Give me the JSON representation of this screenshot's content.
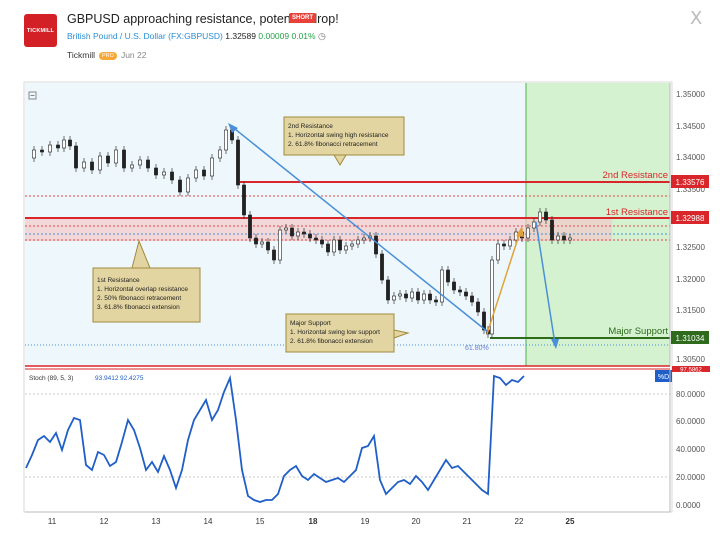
{
  "header": {
    "logo_text": "TICKMILL",
    "title": "GBPUSD approaching resistance, potential drop!",
    "badge": "SHORT",
    "instrument": "British Pound / U.S. Dollar",
    "symbol": "(FX:GBPUSD)",
    "price": "1.32589",
    "change": "0.00009",
    "change_pct": "0.01%",
    "author": "Tickmill",
    "author_badge": "PRO",
    "published": "Jun 22",
    "close_label": "X",
    "clock_icon": "clock-icon"
  },
  "chart": {
    "collapse_icon": "minus-square-icon",
    "price_axis": [
      "1.35000",
      "1.34500",
      "1.34000",
      "1.33500",
      "1.32500",
      "1.32000",
      "1.31500",
      "1.30500"
    ],
    "time_axis": [
      "11",
      "12",
      "13",
      "14",
      "15",
      "18",
      "19",
      "20",
      "21",
      "22",
      "25"
    ],
    "levels": {
      "second_resistance": {
        "label": "2nd Resistance",
        "price": "1.33576",
        "color": "#d9262b"
      },
      "first_resistance": {
        "label": "1st Resistance",
        "price": "1.32988",
        "color": "#d9262b"
      },
      "major_support": {
        "label": "Major Support",
        "price": "1.31034",
        "color": "#2e6b1d"
      }
    },
    "fib_label": "61.80%",
    "annotations": {
      "second_resistance": {
        "title": "2nd Resistance",
        "line1": "1. Horizontal swing high resistance",
        "line2": "2. 61.8% fibonacci retracement"
      },
      "first_resistance": {
        "title": "1st Resistance",
        "line1": "1. Horizontal overlap resistance",
        "line2": "2. 50% fibonacci retracement",
        "line3": "3. 61.8% fibonacci extension"
      },
      "major_support": {
        "title": "Major Support",
        "line1": "1. Horizontal swing low support",
        "line2": "2. 61.8% fibonacci extension"
      }
    }
  },
  "stoch": {
    "legend": "Stoch (89, 5, 3)",
    "k_value": "93.9412",
    "d_value": "92.4275",
    "d_badge": "%D",
    "top_label": "97.5862",
    "axis": [
      "80.0000",
      "60.0000",
      "40.0000",
      "20.0000",
      "0.0000"
    ],
    "color": "#1f5fc7"
  }
}
